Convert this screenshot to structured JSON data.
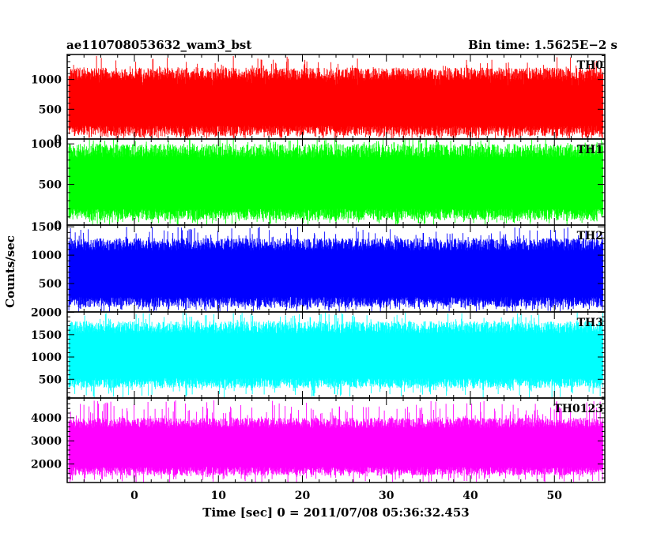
{
  "chart_data": {
    "type": "line",
    "title_left": "ae110708053632_wam3_bst",
    "title_right": "Bin time: 1.5625E−2 s",
    "xlabel": "Time [sec] 0 = 2011/07/08 05:36:32.453",
    "ylabel": "Counts/sec",
    "xlim": [
      -8,
      56
    ],
    "x_ticks": [
      0,
      10,
      20,
      30,
      40,
      50
    ],
    "data_x_range": [
      -7.8,
      55.8
    ],
    "grid": false,
    "panels": [
      {
        "name": "TH0",
        "color": "#ff0000",
        "ylim": [
          0,
          1420
        ],
        "y_ticks": [
          0,
          500,
          1000
        ],
        "typical_range": [
          50,
          1200
        ],
        "peak_range": [
          900,
          1400
        ]
      },
      {
        "name": "TH1",
        "color": "#00ff00",
        "ylim": [
          0,
          1060
        ],
        "y_ticks": [
          0,
          500,
          1000
        ],
        "typical_range": [
          60,
          1000
        ],
        "peak_range": [
          880,
          1070
        ]
      },
      {
        "name": "TH2",
        "color": "#0000ff",
        "ylim": [
          0,
          1530
        ],
        "y_ticks": [
          500,
          1000,
          1500
        ],
        "typical_range": [
          80,
          1300
        ],
        "peak_range": [
          1150,
          1500
        ]
      },
      {
        "name": "TH3",
        "color": "#00ffff",
        "ylim": [
          80,
          2010
        ],
        "y_ticks": [
          500,
          1000,
          1500,
          2000
        ],
        "typical_range": [
          300,
          1800
        ],
        "peak_range": [
          1600,
          2000
        ]
      },
      {
        "name": "TH0123",
        "color": "#ff00ff",
        "ylim": [
          1200,
          4850
        ],
        "y_ticks": [
          2000,
          3000,
          4000
        ],
        "typical_range": [
          1500,
          4000
        ],
        "peak_range": [
          3900,
          4750
        ]
      }
    ]
  }
}
